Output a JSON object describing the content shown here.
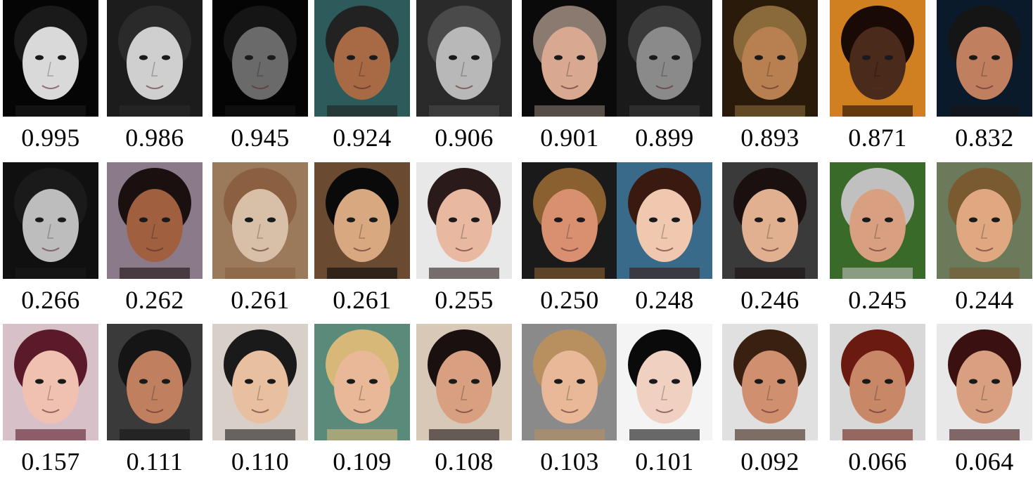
{
  "rows": [
    {
      "faces": [
        {
          "score": "0.995",
          "bg": "#050505",
          "skin": "#d9d9d9",
          "hair": "#1a1a1a"
        },
        {
          "score": "0.986",
          "bg": "#1c1c1c",
          "skin": "#cfcfcf",
          "hair": "#2a2a2a"
        },
        {
          "score": "0.945",
          "bg": "#040404",
          "skin": "#6a6a6a",
          "hair": "#151515"
        },
        {
          "score": "0.924",
          "bg": "#2d5a5a",
          "skin": "#a86a45",
          "hair": "#222222"
        },
        {
          "score": "0.906",
          "bg": "#2a2a2a",
          "skin": "#b8b8b8",
          "hair": "#4a4a4a"
        },
        {
          "score": "0.901",
          "bg": "#0a0a0a",
          "skin": "#d8a890",
          "hair": "#8a7a70"
        },
        {
          "score": "0.899",
          "bg": "#1a1a1a",
          "skin": "#8a8a8a",
          "hair": "#3a3a3a"
        },
        {
          "score": "0.893",
          "bg": "#2a1a0a",
          "skin": "#b88050",
          "hair": "#8a6a3a"
        },
        {
          "score": "0.871",
          "bg": "#d08020",
          "skin": "#4a2a1a",
          "hair": "#1a0a05"
        },
        {
          "score": "0.832",
          "bg": "#0a1a2a",
          "skin": "#c08060",
          "hair": "#151515"
        }
      ]
    },
    {
      "faces": [
        {
          "score": "0.266",
          "bg": "#101010",
          "skin": "#bdbdbd",
          "hair": "#1a1a1a"
        },
        {
          "score": "0.262",
          "bg": "#8a7a8a",
          "skin": "#a06040",
          "hair": "#1a1010"
        },
        {
          "score": "0.261",
          "bg": "#9a7a5a",
          "skin": "#d8c0a8",
          "hair": "#8a6040"
        },
        {
          "score": "0.261",
          "bg": "#6a4a30",
          "skin": "#d8a880",
          "hair": "#0a0a0a"
        },
        {
          "score": "0.255",
          "bg": "#e8e8e8",
          "skin": "#e8b8a0",
          "hair": "#2a1a1a"
        },
        {
          "score": "0.250",
          "bg": "#1a1a1a",
          "skin": "#d89070",
          "hair": "#8a6030"
        },
        {
          "score": "0.248",
          "bg": "#3a6a8a",
          "skin": "#f0c8b0",
          "hair": "#3a1a10"
        },
        {
          "score": "0.246",
          "bg": "#3a3a3a",
          "skin": "#e0b090",
          "hair": "#1a1010"
        },
        {
          "score": "0.245",
          "bg": "#3a6a2a",
          "skin": "#d8a080",
          "hair": "#c0c0c0"
        },
        {
          "score": "0.244",
          "bg": "#6a7a5a",
          "skin": "#e0a880",
          "hair": "#7a5a30"
        }
      ]
    },
    {
      "faces": [
        {
          "score": "0.157",
          "bg": "#d8c0c8",
          "skin": "#f0c0b0",
          "hair": "#5a1a2a"
        },
        {
          "score": "0.111",
          "bg": "#3a3a3a",
          "skin": "#c08060",
          "hair": "#151515"
        },
        {
          "score": "0.110",
          "bg": "#d8d0c8",
          "skin": "#e8c0a0",
          "hair": "#1a1a1a"
        },
        {
          "score": "0.109",
          "bg": "#5a8a7a",
          "skin": "#e8b898",
          "hair": "#d8b878"
        },
        {
          "score": "0.108",
          "bg": "#d8c8b8",
          "skin": "#d8a080",
          "hair": "#1a1010"
        },
        {
          "score": "0.103",
          "bg": "#8a8a8a",
          "skin": "#e8b898",
          "hair": "#b89060"
        },
        {
          "score": "0.101",
          "bg": "#f4f4f4",
          "skin": "#f0d0c0",
          "hair": "#0a0a0a"
        },
        {
          "score": "0.092",
          "bg": "#e0e0e0",
          "skin": "#d09070",
          "hair": "#3a2010"
        },
        {
          "score": "0.066",
          "bg": "#d8d8d8",
          "skin": "#c88868",
          "hair": "#6a1a10"
        },
        {
          "score": "0.064",
          "bg": "#e8e8e8",
          "skin": "#d8a080",
          "hair": "#3a1010"
        }
      ]
    }
  ]
}
